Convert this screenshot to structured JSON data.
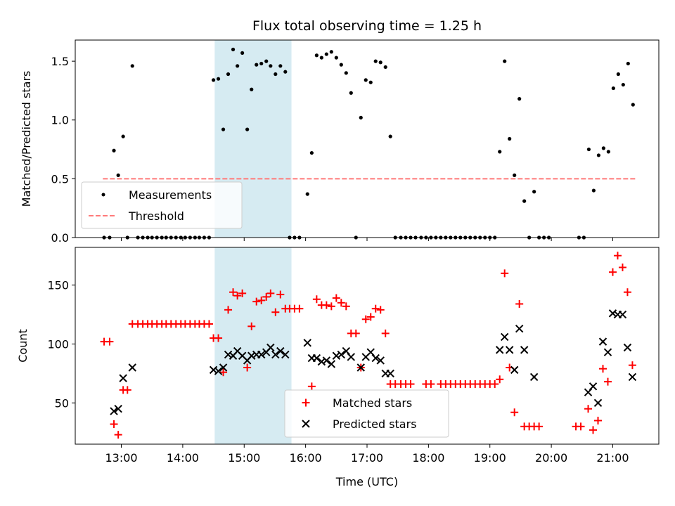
{
  "chart_data": [
    {
      "type": "scatter",
      "title": "Flux total observing time = 1.25 h",
      "xlabel": "",
      "ylabel": "Matched/Predicted stars",
      "xlim": [
        12.25,
        21.75
      ],
      "ylim": [
        0.0,
        1.68
      ],
      "xticks": [
        13,
        14,
        15,
        16,
        17,
        18,
        19,
        20,
        21
      ],
      "yticks": [
        0.0,
        0.5,
        1.0,
        1.5
      ],
      "ytick_labels": [
        "0.0",
        "0.5",
        "1.0",
        "1.5"
      ],
      "highlight_span": [
        14.52,
        15.77
      ],
      "legend_position": "lower-left",
      "threshold": {
        "name": "Threshold",
        "value": 0.5,
        "x_range": [
          12.7,
          21.38
        ],
        "color": "#ff7a7a"
      },
      "series": [
        {
          "name": "Measurements",
          "color": "#000000",
          "points": [
            [
              12.72,
              0.0
            ],
            [
              12.81,
              0.0
            ],
            [
              12.88,
              0.74
            ],
            [
              12.95,
              0.53
            ],
            [
              13.03,
              0.86
            ],
            [
              13.1,
              0.0
            ],
            [
              13.18,
              1.46
            ],
            [
              13.27,
              0.0
            ],
            [
              13.35,
              0.0
            ],
            [
              13.43,
              0.0
            ],
            [
              13.5,
              0.0
            ],
            [
              13.58,
              0.0
            ],
            [
              13.66,
              0.0
            ],
            [
              13.73,
              0.0
            ],
            [
              13.81,
              0.0
            ],
            [
              13.89,
              0.0
            ],
            [
              13.97,
              0.0
            ],
            [
              14.04,
              0.0
            ],
            [
              14.12,
              0.0
            ],
            [
              14.2,
              0.0
            ],
            [
              14.27,
              0.0
            ],
            [
              14.35,
              0.0
            ],
            [
              14.43,
              0.0
            ],
            [
              14.5,
              1.34
            ],
            [
              14.58,
              1.35
            ],
            [
              14.66,
              0.92
            ],
            [
              14.74,
              1.39
            ],
            [
              14.82,
              1.6
            ],
            [
              14.89,
              1.46
            ],
            [
              14.97,
              1.57
            ],
            [
              15.05,
              0.92
            ],
            [
              15.12,
              1.26
            ],
            [
              15.2,
              1.47
            ],
            [
              15.28,
              1.48
            ],
            [
              15.36,
              1.5
            ],
            [
              15.43,
              1.46
            ],
            [
              15.51,
              1.39
            ],
            [
              15.59,
              1.46
            ],
            [
              15.67,
              1.41
            ],
            [
              15.74,
              0.0
            ],
            [
              15.82,
              0.0
            ],
            [
              15.9,
              0.0
            ],
            [
              16.03,
              0.37
            ],
            [
              16.1,
              0.72
            ],
            [
              16.18,
              1.55
            ],
            [
              16.26,
              1.53
            ],
            [
              16.34,
              1.56
            ],
            [
              16.42,
              1.58
            ],
            [
              16.5,
              1.53
            ],
            [
              16.58,
              1.47
            ],
            [
              16.66,
              1.4
            ],
            [
              16.74,
              1.23
            ],
            [
              16.82,
              0.0
            ],
            [
              16.9,
              1.02
            ],
            [
              16.98,
              1.34
            ],
            [
              17.06,
              1.32
            ],
            [
              17.14,
              1.5
            ],
            [
              17.22,
              1.49
            ],
            [
              17.3,
              1.45
            ],
            [
              17.38,
              0.86
            ],
            [
              17.46,
              0.0
            ],
            [
              17.55,
              0.0
            ],
            [
              17.63,
              0.0
            ],
            [
              17.71,
              0.0
            ],
            [
              17.79,
              0.0
            ],
            [
              17.88,
              0.0
            ],
            [
              17.96,
              0.0
            ],
            [
              18.04,
              0.0
            ],
            [
              18.12,
              0.0
            ],
            [
              18.2,
              0.0
            ],
            [
              18.28,
              0.0
            ],
            [
              18.36,
              0.0
            ],
            [
              18.44,
              0.0
            ],
            [
              18.52,
              0.0
            ],
            [
              18.6,
              0.0
            ],
            [
              18.68,
              0.0
            ],
            [
              18.76,
              0.0
            ],
            [
              18.84,
              0.0
            ],
            [
              18.92,
              0.0
            ],
            [
              19.0,
              0.0
            ],
            [
              19.08,
              0.0
            ],
            [
              19.16,
              0.73
            ],
            [
              19.24,
              1.5
            ],
            [
              19.32,
              0.84
            ],
            [
              19.4,
              0.53
            ],
            [
              19.48,
              1.18
            ],
            [
              19.56,
              0.31
            ],
            [
              19.64,
              0.0
            ],
            [
              19.72,
              0.39
            ],
            [
              19.8,
              0.0
            ],
            [
              19.88,
              0.0
            ],
            [
              19.96,
              0.0
            ],
            [
              20.45,
              0.0
            ],
            [
              20.53,
              0.0
            ],
            [
              20.61,
              0.75
            ],
            [
              20.69,
              0.4
            ],
            [
              20.77,
              0.7
            ],
            [
              20.85,
              0.76
            ],
            [
              20.93,
              0.73
            ],
            [
              21.01,
              1.27
            ],
            [
              21.09,
              1.39
            ],
            [
              21.17,
              1.3
            ],
            [
              21.25,
              1.48
            ],
            [
              21.33,
              1.13
            ]
          ]
        }
      ]
    },
    {
      "type": "scatter",
      "title": "",
      "xlabel": "Time (UTC)",
      "ylabel": "Count",
      "xlim": [
        12.25,
        21.75
      ],
      "ylim": [
        15,
        182
      ],
      "xticks": [
        13,
        14,
        15,
        16,
        17,
        18,
        19,
        20,
        21
      ],
      "xtick_labels": [
        "13:00",
        "14:00",
        "15:00",
        "16:00",
        "17:00",
        "18:00",
        "19:00",
        "20:00",
        "21:00"
      ],
      "yticks": [
        50,
        100,
        150
      ],
      "ytick_labels": [
        "50",
        "100",
        "150"
      ],
      "highlight_span": [
        14.52,
        15.77
      ],
      "legend_position": "lower-center",
      "series": [
        {
          "name": "Matched stars",
          "marker": "plus",
          "color": "#ff0000",
          "points": [
            [
              12.72,
              102
            ],
            [
              12.81,
              102
            ],
            [
              12.88,
              32
            ],
            [
              12.95,
              23
            ],
            [
              13.03,
              61
            ],
            [
              13.1,
              61
            ],
            [
              13.18,
              117
            ],
            [
              13.27,
              117
            ],
            [
              13.35,
              117
            ],
            [
              13.43,
              117
            ],
            [
              13.5,
              117
            ],
            [
              13.58,
              117
            ],
            [
              13.66,
              117
            ],
            [
              13.73,
              117
            ],
            [
              13.81,
              117
            ],
            [
              13.89,
              117
            ],
            [
              13.97,
              117
            ],
            [
              14.04,
              117
            ],
            [
              14.12,
              117
            ],
            [
              14.2,
              117
            ],
            [
              14.27,
              117
            ],
            [
              14.35,
              117
            ],
            [
              14.43,
              117
            ],
            [
              14.5,
              105
            ],
            [
              14.58,
              105
            ],
            [
              14.66,
              76
            ],
            [
              14.74,
              129
            ],
            [
              14.82,
              144
            ],
            [
              14.89,
              141
            ],
            [
              14.97,
              143
            ],
            [
              15.05,
              80
            ],
            [
              15.12,
              115
            ],
            [
              15.2,
              136
            ],
            [
              15.28,
              137
            ],
            [
              15.36,
              140
            ],
            [
              15.43,
              143
            ],
            [
              15.51,
              127
            ],
            [
              15.59,
              142
            ],
            [
              15.67,
              130
            ],
            [
              15.74,
              130
            ],
            [
              15.82,
              130
            ],
            [
              15.9,
              130
            ],
            [
              16.1,
              64
            ],
            [
              16.18,
              138
            ],
            [
              16.26,
              133
            ],
            [
              16.34,
              133
            ],
            [
              16.42,
              132
            ],
            [
              16.5,
              139
            ],
            [
              16.58,
              135
            ],
            [
              16.66,
              132
            ],
            [
              16.74,
              109
            ],
            [
              16.82,
              109
            ],
            [
              16.9,
              80
            ],
            [
              16.98,
              121
            ],
            [
              17.06,
              123
            ],
            [
              17.14,
              130
            ],
            [
              17.22,
              129
            ],
            [
              17.3,
              109
            ],
            [
              17.38,
              66
            ],
            [
              17.46,
              66
            ],
            [
              17.55,
              66
            ],
            [
              17.63,
              66
            ],
            [
              17.71,
              66
            ],
            [
              17.96,
              66
            ],
            [
              18.04,
              66
            ],
            [
              18.2,
              66
            ],
            [
              18.28,
              66
            ],
            [
              18.36,
              66
            ],
            [
              18.44,
              66
            ],
            [
              18.52,
              66
            ],
            [
              18.6,
              66
            ],
            [
              18.68,
              66
            ],
            [
              18.76,
              66
            ],
            [
              18.84,
              66
            ],
            [
              18.92,
              66
            ],
            [
              19.0,
              66
            ],
            [
              19.08,
              66
            ],
            [
              19.16,
              70
            ],
            [
              19.24,
              160
            ],
            [
              19.32,
              80
            ],
            [
              19.4,
              42
            ],
            [
              19.48,
              134
            ],
            [
              19.56,
              30
            ],
            [
              19.64,
              30
            ],
            [
              19.72,
              30
            ],
            [
              19.8,
              30
            ],
            [
              20.4,
              30
            ],
            [
              20.48,
              30
            ],
            [
              20.6,
              45
            ],
            [
              20.68,
              27
            ],
            [
              20.76,
              35
            ],
            [
              20.84,
              79
            ],
            [
              20.92,
              68
            ],
            [
              21.0,
              161
            ],
            [
              21.08,
              175
            ],
            [
              21.16,
              165
            ],
            [
              21.24,
              144
            ],
            [
              21.32,
              82
            ]
          ]
        },
        {
          "name": "Predicted stars",
          "marker": "x",
          "color": "#000000",
          "points": [
            [
              12.88,
              43
            ],
            [
              12.95,
              45
            ],
            [
              13.03,
              71
            ],
            [
              13.18,
              80
            ],
            [
              14.5,
              78
            ],
            [
              14.58,
              77
            ],
            [
              14.66,
              80
            ],
            [
              14.74,
              91
            ],
            [
              14.82,
              90
            ],
            [
              14.89,
              94
            ],
            [
              14.97,
              90
            ],
            [
              15.05,
              86
            ],
            [
              15.12,
              90
            ],
            [
              15.2,
              91
            ],
            [
              15.28,
              91
            ],
            [
              15.36,
              93
            ],
            [
              15.43,
              97
            ],
            [
              15.51,
              91
            ],
            [
              15.59,
              94
            ],
            [
              15.67,
              91
            ],
            [
              16.03,
              101
            ],
            [
              16.1,
              88
            ],
            [
              16.18,
              88
            ],
            [
              16.26,
              85
            ],
            [
              16.34,
              86
            ],
            [
              16.42,
              83
            ],
            [
              16.5,
              90
            ],
            [
              16.58,
              91
            ],
            [
              16.66,
              94
            ],
            [
              16.74,
              89
            ],
            [
              16.9,
              80
            ],
            [
              16.98,
              89
            ],
            [
              17.06,
              93
            ],
            [
              17.14,
              88
            ],
            [
              17.22,
              86
            ],
            [
              17.3,
              75
            ],
            [
              17.38,
              75
            ],
            [
              19.16,
              95
            ],
            [
              19.24,
              106
            ],
            [
              19.32,
              95
            ],
            [
              19.4,
              78
            ],
            [
              19.48,
              113
            ],
            [
              19.56,
              95
            ],
            [
              19.72,
              72
            ],
            [
              20.6,
              59
            ],
            [
              20.68,
              64
            ],
            [
              20.76,
              50
            ],
            [
              20.84,
              102
            ],
            [
              20.92,
              93
            ],
            [
              21.0,
              126
            ],
            [
              21.08,
              125
            ],
            [
              21.16,
              125
            ],
            [
              21.24,
              97
            ],
            [
              21.32,
              72
            ]
          ]
        }
      ]
    }
  ]
}
